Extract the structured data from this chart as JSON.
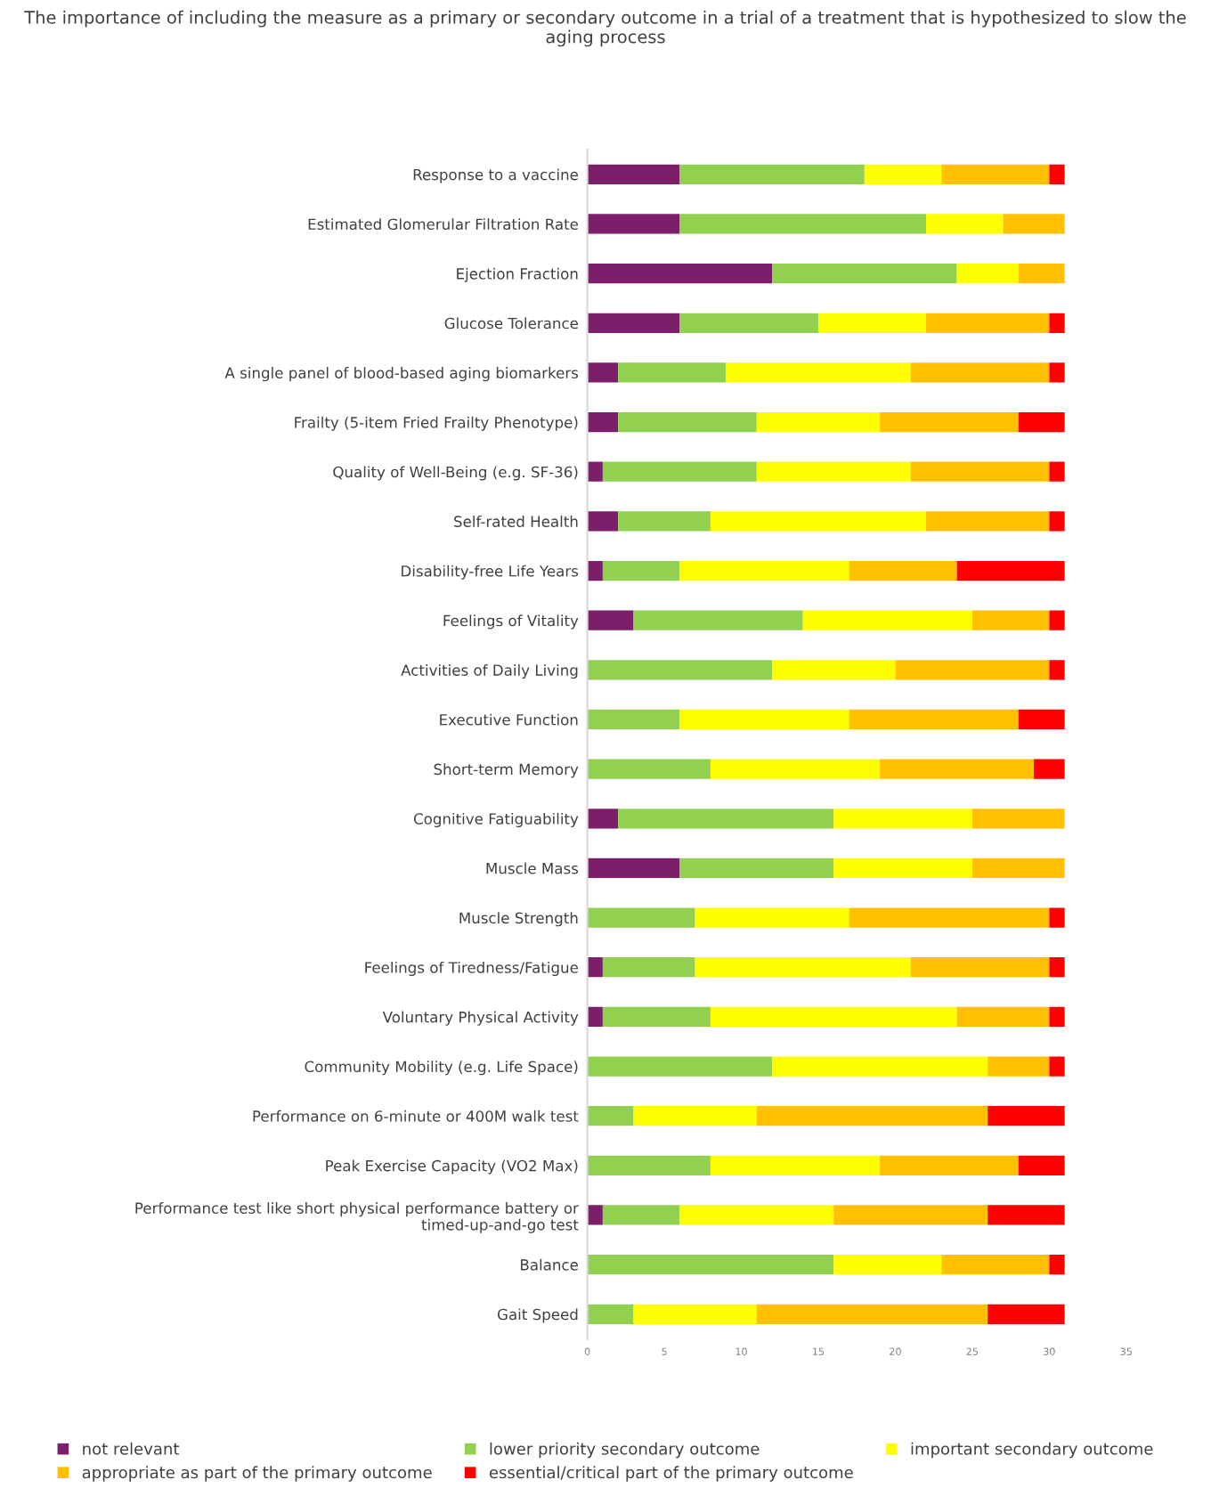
{
  "chart_data": {
    "type": "bar",
    "orientation": "horizontal",
    "stacked": true,
    "title": "The importance of including the measure as a primary or secondary outcome in a trial of a treatment that is hypothesized to slow the aging process",
    "categories": [
      "Response to a vaccine",
      "Estimated Glomerular Filtration Rate",
      "Ejection Fraction",
      "Glucose Tolerance",
      "A single panel of blood-based aging biomarkers",
      "Frailty (5-item Fried Frailty Phenotype)",
      "Quality of Well-Being (e.g. SF-36)",
      "Self-rated Health",
      "Disability-free Life Years",
      "Feelings of Vitality",
      "Activities of Daily Living",
      "Executive Function",
      "Short-term Memory",
      "Cognitive Fatiguability",
      "Muscle Mass",
      "Muscle Strength",
      "Feelings of Tiredness/Fatigue",
      "Voluntary Physical Activity",
      "Community Mobility (e.g. Life Space)",
      "Performance on 6-minute or 400M walk test",
      "Peak Exercise Capacity (VO2 Max)",
      "Performance test like short physical performance battery or timed-up-and-go test",
      "Balance",
      "Gait Speed"
    ],
    "series": [
      {
        "name": "not relevant",
        "color": "#7b1f6b",
        "values": [
          6,
          6,
          12,
          6,
          2,
          2,
          1,
          2,
          1,
          3,
          0,
          0,
          0,
          2,
          6,
          0,
          1,
          1,
          0,
          0,
          0,
          1,
          0,
          0
        ]
      },
      {
        "name": "lower priority secondary outcome",
        "color": "#92d050",
        "values": [
          12,
          16,
          12,
          9,
          7,
          9,
          10,
          6,
          5,
          11,
          12,
          6,
          8,
          14,
          10,
          7,
          6,
          7,
          12,
          3,
          8,
          5,
          16,
          3
        ]
      },
      {
        "name": "important secondary outcome",
        "color": "#ffff00",
        "values": [
          5,
          5,
          4,
          7,
          12,
          8,
          10,
          14,
          11,
          11,
          8,
          11,
          11,
          9,
          9,
          10,
          14,
          16,
          14,
          8,
          11,
          10,
          7,
          8
        ]
      },
      {
        "name": "appropriate as part of the primary outcome",
        "color": "#ffc000",
        "values": [
          7,
          4,
          3,
          8,
          9,
          9,
          9,
          8,
          7,
          5,
          10,
          11,
          10,
          6,
          6,
          13,
          9,
          6,
          4,
          15,
          9,
          10,
          7,
          15
        ]
      },
      {
        "name": "essential/critical part of the primary outcome",
        "color": "#ff0000",
        "values": [
          1,
          0,
          0,
          1,
          1,
          3,
          1,
          1,
          7,
          1,
          1,
          3,
          2,
          0,
          0,
          1,
          1,
          1,
          1,
          5,
          3,
          5,
          1,
          5
        ]
      }
    ],
    "xlim": [
      0,
      35
    ],
    "xticks": [
      0,
      5,
      10,
      15,
      20,
      25,
      30,
      35
    ],
    "grid": false,
    "legend": "bottom"
  }
}
